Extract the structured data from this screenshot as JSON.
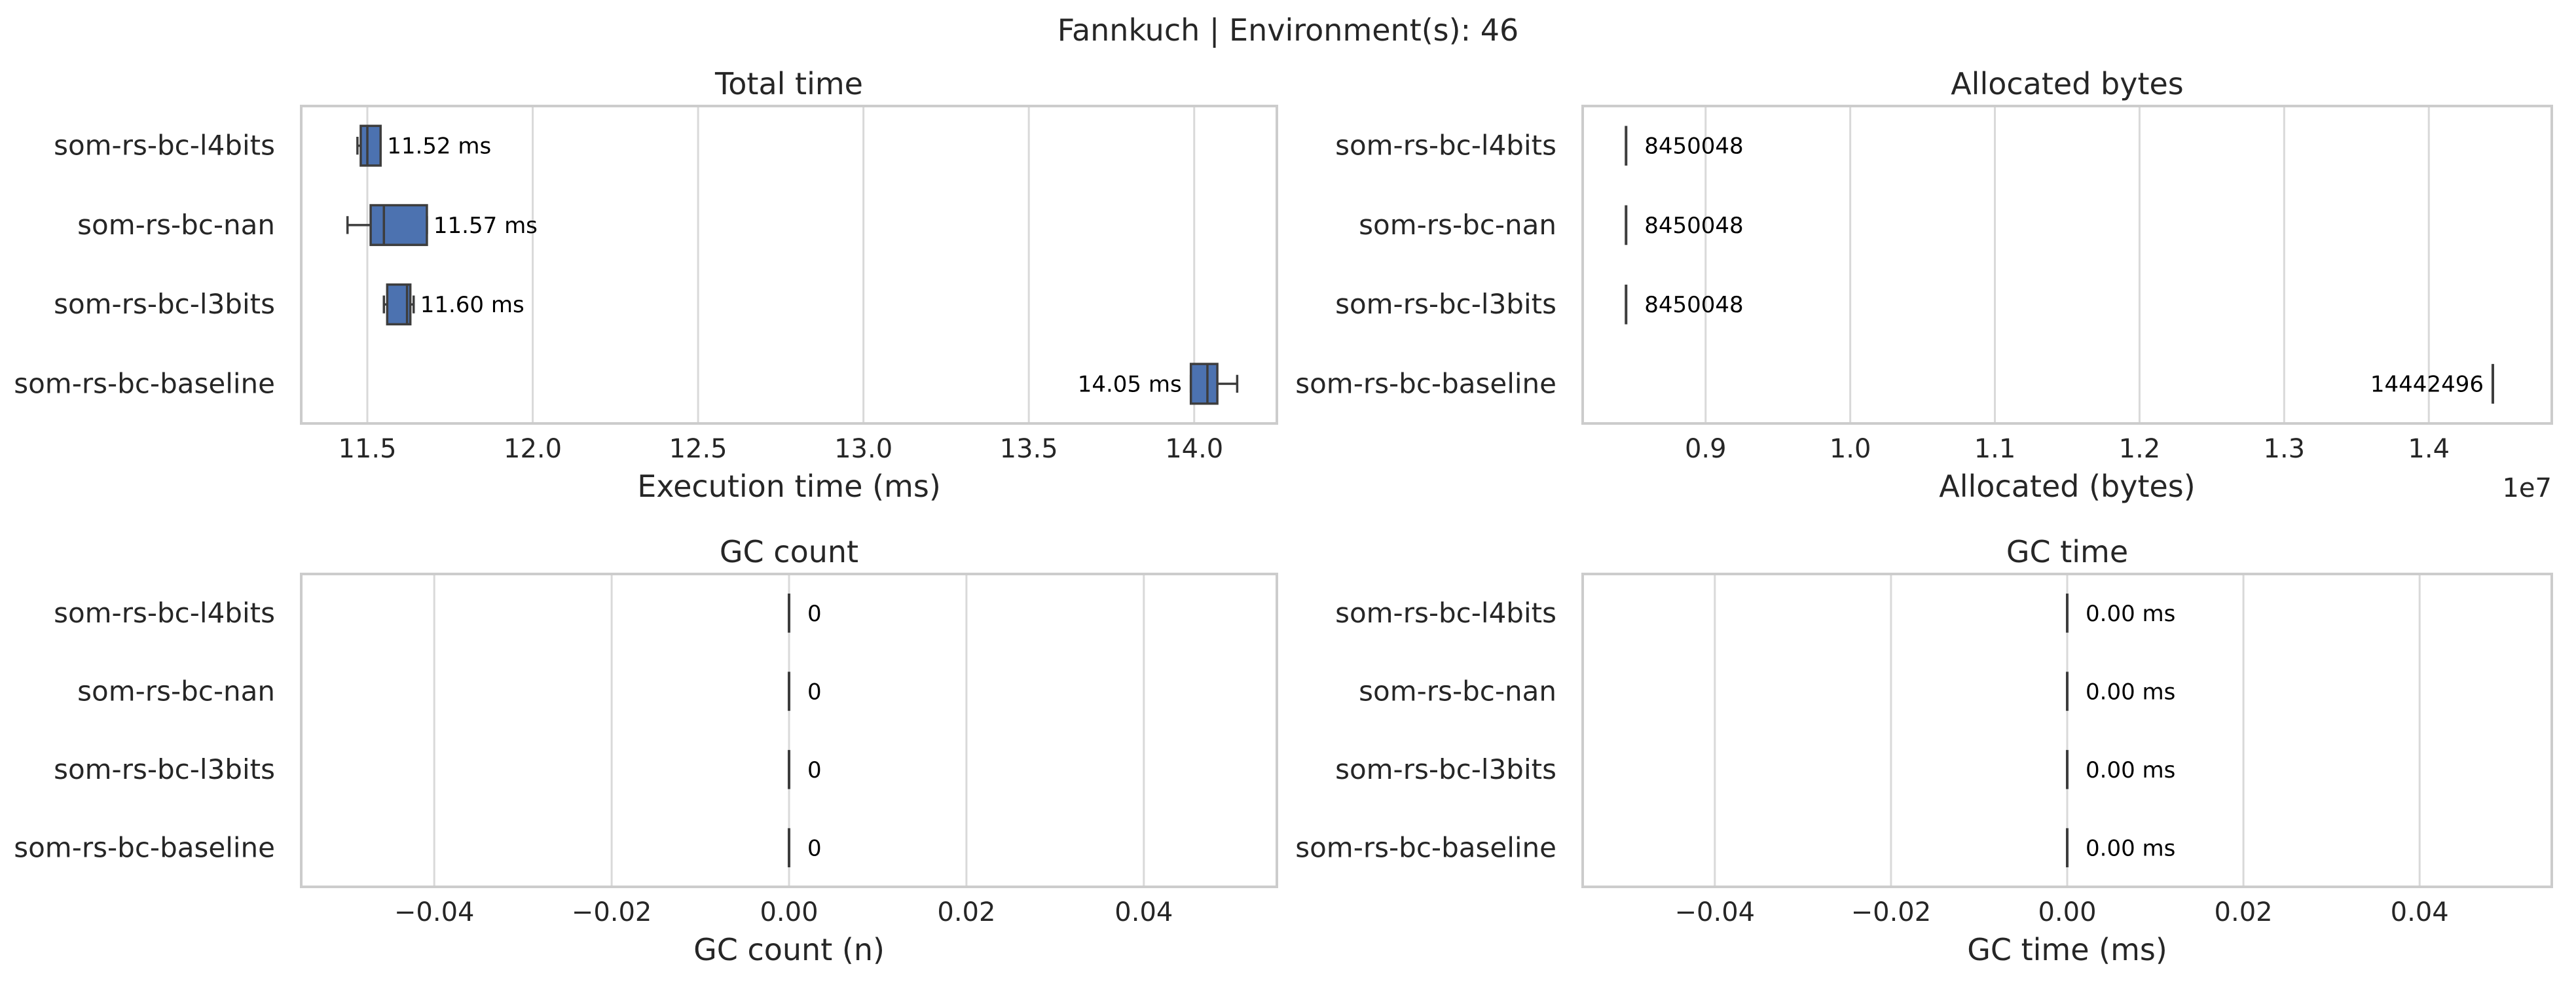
{
  "figure": {
    "suptitle": "Fannkuch | Environment(s): 46"
  },
  "colors": {
    "box_fill": "#4c72b0",
    "box_light": "#b8c9e6",
    "edge": "#3d3d3d",
    "grid": "#d9d9d9",
    "frame": "#cccccc",
    "text": "#262626"
  },
  "chart_data": [
    {
      "id": "total-time",
      "type": "boxplot",
      "orientation": "horizontal",
      "title": "Total time",
      "xlabel": "Execution time (ms)",
      "xlim": [
        11.3,
        14.25
      ],
      "xticks": [
        11.5,
        12.0,
        12.5,
        13.0,
        13.5,
        14.0
      ],
      "xtick_labels": [
        "11.5",
        "12.0",
        "12.5",
        "13.0",
        "13.5",
        "14.0"
      ],
      "offset_text": "",
      "categories": [
        "som-rs-bc-l4bits",
        "som-rs-bc-nan",
        "som-rs-bc-l3bits",
        "som-rs-bc-baseline"
      ],
      "boxes": [
        {
          "whisker_low": 11.47,
          "q1": 11.48,
          "median": 11.5,
          "q3": 11.54,
          "whisker_high": 11.54,
          "mean": 11.52,
          "label": "11.52 ms",
          "label_side": "right"
        },
        {
          "whisker_low": 11.44,
          "q1": 11.51,
          "median": 11.55,
          "q3": 11.68,
          "whisker_high": 11.68,
          "mean": 11.57,
          "label": "11.57 ms",
          "label_side": "right"
        },
        {
          "whisker_low": 11.55,
          "q1": 11.56,
          "median": 11.62,
          "q3": 11.63,
          "whisker_high": 11.64,
          "mean": 11.6,
          "label": "11.60 ms",
          "label_side": "right"
        },
        {
          "whisker_low": 13.99,
          "q1": 13.99,
          "median": 14.04,
          "q3": 14.07,
          "whisker_high": 14.13,
          "mean": 14.05,
          "label": "14.05 ms",
          "label_side": "left"
        }
      ]
    },
    {
      "id": "allocated-bytes",
      "type": "boxplot",
      "orientation": "horizontal",
      "title": "Allocated bytes",
      "xlabel": "Allocated (bytes)",
      "xlim": [
        8150000,
        14850000
      ],
      "xticks": [
        9000000,
        10000000,
        11000000,
        12000000,
        13000000,
        14000000
      ],
      "xtick_labels": [
        "0.9",
        "1.0",
        "1.1",
        "1.2",
        "1.3",
        "1.4"
      ],
      "offset_text": "1e7",
      "categories": [
        "som-rs-bc-l4bits",
        "som-rs-bc-nan",
        "som-rs-bc-l3bits",
        "som-rs-bc-baseline"
      ],
      "boxes": [
        {
          "whisker_low": 8450048,
          "q1": 8450048,
          "median": 8450048,
          "q3": 8450048,
          "whisker_high": 8450048,
          "mean": 8450048,
          "label": "8450048",
          "label_side": "right"
        },
        {
          "whisker_low": 8450048,
          "q1": 8450048,
          "median": 8450048,
          "q3": 8450048,
          "whisker_high": 8450048,
          "mean": 8450048,
          "label": "8450048",
          "label_side": "right"
        },
        {
          "whisker_low": 8450048,
          "q1": 8450048,
          "median": 8450048,
          "q3": 8450048,
          "whisker_high": 8450048,
          "mean": 8450048,
          "label": "8450048",
          "label_side": "right"
        },
        {
          "whisker_low": 14442496,
          "q1": 14442496,
          "median": 14442496,
          "q3": 14442496,
          "whisker_high": 14442496,
          "mean": 14442496,
          "label": "14442496",
          "label_side": "left"
        }
      ]
    },
    {
      "id": "gc-count",
      "type": "boxplot",
      "orientation": "horizontal",
      "title": "GC count",
      "xlabel": "GC count (n)",
      "xlim": [
        -0.055,
        0.055
      ],
      "xticks": [
        -0.04,
        -0.02,
        0.0,
        0.02,
        0.04
      ],
      "xtick_labels": [
        "−0.04",
        "−0.02",
        "0.00",
        "0.02",
        "0.04"
      ],
      "offset_text": "",
      "categories": [
        "som-rs-bc-l4bits",
        "som-rs-bc-nan",
        "som-rs-bc-l3bits",
        "som-rs-bc-baseline"
      ],
      "boxes": [
        {
          "whisker_low": 0,
          "q1": 0,
          "median": 0,
          "q3": 0,
          "whisker_high": 0,
          "mean": 0,
          "label": "0",
          "label_side": "right"
        },
        {
          "whisker_low": 0,
          "q1": 0,
          "median": 0,
          "q3": 0,
          "whisker_high": 0,
          "mean": 0,
          "label": "0",
          "label_side": "right"
        },
        {
          "whisker_low": 0,
          "q1": 0,
          "median": 0,
          "q3": 0,
          "whisker_high": 0,
          "mean": 0,
          "label": "0",
          "label_side": "right"
        },
        {
          "whisker_low": 0,
          "q1": 0,
          "median": 0,
          "q3": 0,
          "whisker_high": 0,
          "mean": 0,
          "label": "0",
          "label_side": "right"
        }
      ]
    },
    {
      "id": "gc-time",
      "type": "boxplot",
      "orientation": "horizontal",
      "title": "GC time",
      "xlabel": "GC time (ms)",
      "xlim": [
        -0.055,
        0.055
      ],
      "xticks": [
        -0.04,
        -0.02,
        0.0,
        0.02,
        0.04
      ],
      "xtick_labels": [
        "−0.04",
        "−0.02",
        "0.00",
        "0.02",
        "0.04"
      ],
      "offset_text": "",
      "categories": [
        "som-rs-bc-l4bits",
        "som-rs-bc-nan",
        "som-rs-bc-l3bits",
        "som-rs-bc-baseline"
      ],
      "boxes": [
        {
          "whisker_low": 0,
          "q1": 0,
          "median": 0,
          "q3": 0,
          "whisker_high": 0,
          "mean": 0,
          "label": "0.00 ms",
          "label_side": "right"
        },
        {
          "whisker_low": 0,
          "q1": 0,
          "median": 0,
          "q3": 0,
          "whisker_high": 0,
          "mean": 0,
          "label": "0.00 ms",
          "label_side": "right"
        },
        {
          "whisker_low": 0,
          "q1": 0,
          "median": 0,
          "q3": 0,
          "whisker_high": 0,
          "mean": 0,
          "label": "0.00 ms",
          "label_side": "right"
        },
        {
          "whisker_low": 0,
          "q1": 0,
          "median": 0,
          "q3": 0,
          "whisker_high": 0,
          "mean": 0,
          "label": "0.00 ms",
          "label_side": "right"
        }
      ]
    }
  ]
}
